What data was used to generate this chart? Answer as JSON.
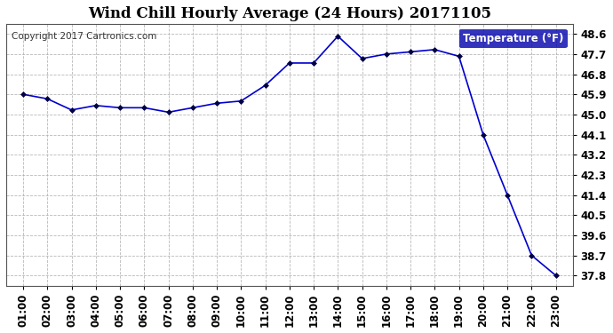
{
  "title": "Wind Chill Hourly Average (24 Hours) 20171105",
  "copyright_text": "Copyright 2017 Cartronics.com",
  "legend_label": "Temperature (°F)",
  "x_labels": [
    "01:00",
    "02:00",
    "03:00",
    "04:00",
    "05:00",
    "06:00",
    "07:00",
    "08:00",
    "09:00",
    "10:00",
    "11:00",
    "12:00",
    "13:00",
    "14:00",
    "15:00",
    "16:00",
    "17:00",
    "18:00",
    "19:00",
    "20:00",
    "21:00",
    "22:00",
    "23:00"
  ],
  "x_values": [
    1,
    2,
    3,
    4,
    5,
    6,
    7,
    8,
    9,
    10,
    11,
    12,
    13,
    14,
    15,
    16,
    17,
    18,
    19,
    20,
    21,
    22,
    23
  ],
  "y_values": [
    45.9,
    45.7,
    45.2,
    45.4,
    45.3,
    45.3,
    45.1,
    45.3,
    45.5,
    45.6,
    46.3,
    47.3,
    47.3,
    48.5,
    47.5,
    47.7,
    47.8,
    47.9,
    47.6,
    44.1,
    41.4,
    38.7,
    37.8
  ],
  "ylim_min": 37.35,
  "ylim_max": 49.05,
  "yticks": [
    37.8,
    38.7,
    39.6,
    40.5,
    41.4,
    42.3,
    43.2,
    44.1,
    45.0,
    45.9,
    46.8,
    47.7,
    48.6
  ],
  "ytick_labels": [
    "37.8",
    "38.7",
    "39.6",
    "40.5",
    "41.4",
    "42.3",
    "43.2",
    "44.1",
    "45.0",
    "45.9",
    "46.8",
    "47.7",
    "48.6"
  ],
  "line_color": "#0000cc",
  "marker_color": "#000044",
  "bg_color": "#ffffff",
  "plot_bg_color": "#ffffff",
  "grid_color": "#b0b0b0",
  "legend_bg": "#0000aa",
  "legend_text_color": "#ffffff",
  "title_fontsize": 12,
  "tick_fontsize": 8.5,
  "copyright_fontsize": 7.5
}
